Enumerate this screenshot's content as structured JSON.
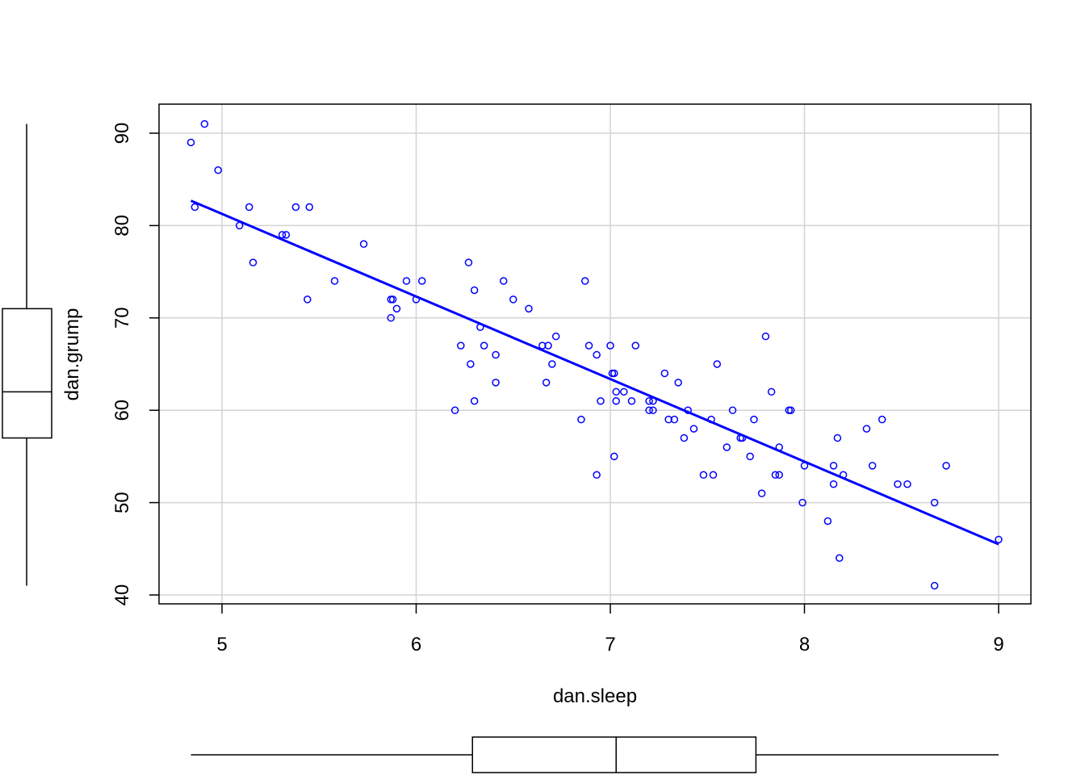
{
  "chart_data": {
    "type": "scatter",
    "xlabel": "dan.sleep",
    "ylabel": "dan.grump",
    "xlim": [
      4.67,
      9.17
    ],
    "ylim": [
      39.0,
      92.0
    ],
    "xticks": [
      5,
      6,
      7,
      8,
      9
    ],
    "yticks": [
      40,
      50,
      60,
      70,
      80,
      90
    ],
    "grid": true,
    "point_color": "#0000FF",
    "line_color": "#0000FF",
    "points": [
      [
        4.84,
        89
      ],
      [
        4.91,
        91
      ],
      [
        4.98,
        86
      ],
      [
        4.86,
        82
      ],
      [
        5.14,
        82
      ],
      [
        5.09,
        80
      ],
      [
        5.16,
        76
      ],
      [
        5.31,
        79
      ],
      [
        5.33,
        79
      ],
      [
        5.38,
        82
      ],
      [
        5.45,
        82
      ],
      [
        5.44,
        72
      ],
      [
        5.58,
        74
      ],
      [
        5.73,
        78
      ],
      [
        5.87,
        72
      ],
      [
        5.88,
        72
      ],
      [
        5.87,
        70
      ],
      [
        5.9,
        71
      ],
      [
        5.95,
        74
      ],
      [
        6.0,
        72
      ],
      [
        6.03,
        74
      ],
      [
        6.2,
        60
      ],
      [
        6.23,
        67
      ],
      [
        6.27,
        76
      ],
      [
        6.28,
        65
      ],
      [
        6.3,
        73
      ],
      [
        6.3,
        61
      ],
      [
        6.33,
        69
      ],
      [
        6.35,
        67
      ],
      [
        6.41,
        66
      ],
      [
        6.41,
        63
      ],
      [
        6.45,
        74
      ],
      [
        6.5,
        72
      ],
      [
        6.58,
        71
      ],
      [
        6.65,
        67
      ],
      [
        6.68,
        67
      ],
      [
        6.67,
        63
      ],
      [
        6.7,
        65
      ],
      [
        6.72,
        68
      ],
      [
        6.85,
        59
      ],
      [
        6.87,
        74
      ],
      [
        6.89,
        67
      ],
      [
        6.93,
        66
      ],
      [
        6.93,
        53
      ],
      [
        6.95,
        61
      ],
      [
        7.0,
        67
      ],
      [
        7.01,
        64
      ],
      [
        7.02,
        64
      ],
      [
        7.02,
        55
      ],
      [
        7.03,
        62
      ],
      [
        7.03,
        61
      ],
      [
        7.07,
        62
      ],
      [
        7.11,
        61
      ],
      [
        7.13,
        67
      ],
      [
        7.2,
        60
      ],
      [
        7.2,
        61
      ],
      [
        7.22,
        61
      ],
      [
        7.22,
        60
      ],
      [
        7.28,
        64
      ],
      [
        7.3,
        59
      ],
      [
        7.33,
        59
      ],
      [
        7.35,
        63
      ],
      [
        7.38,
        57
      ],
      [
        7.4,
        60
      ],
      [
        7.43,
        58
      ],
      [
        7.48,
        53
      ],
      [
        7.52,
        59
      ],
      [
        7.53,
        53
      ],
      [
        7.55,
        65
      ],
      [
        7.6,
        56
      ],
      [
        7.63,
        60
      ],
      [
        7.67,
        57
      ],
      [
        7.68,
        57
      ],
      [
        7.72,
        55
      ],
      [
        7.74,
        59
      ],
      [
        7.78,
        51
      ],
      [
        7.8,
        68
      ],
      [
        7.83,
        62
      ],
      [
        7.85,
        53
      ],
      [
        7.87,
        53
      ],
      [
        7.87,
        56
      ],
      [
        7.92,
        60
      ],
      [
        7.93,
        60
      ],
      [
        7.99,
        50
      ],
      [
        8.0,
        54
      ],
      [
        8.12,
        48
      ],
      [
        8.15,
        52
      ],
      [
        8.15,
        54
      ],
      [
        8.17,
        57
      ],
      [
        8.18,
        44
      ],
      [
        8.2,
        53
      ],
      [
        8.32,
        58
      ],
      [
        8.35,
        54
      ],
      [
        8.4,
        59
      ],
      [
        8.48,
        52
      ],
      [
        8.53,
        52
      ],
      [
        8.67,
        50
      ],
      [
        8.67,
        41
      ],
      [
        8.73,
        54
      ],
      [
        9.0,
        46
      ]
    ],
    "regression": {
      "intercept": 125.96,
      "slope": -8.94,
      "x_range": [
        4.84,
        9.0
      ]
    },
    "boxplot_x": {
      "min": 4.84,
      "q1": 6.29,
      "median": 7.03,
      "q3": 7.75,
      "max": 9.0
    },
    "boxplot_y": {
      "min": 41,
      "q1": 57,
      "median": 62,
      "q3": 71,
      "max": 91
    }
  }
}
